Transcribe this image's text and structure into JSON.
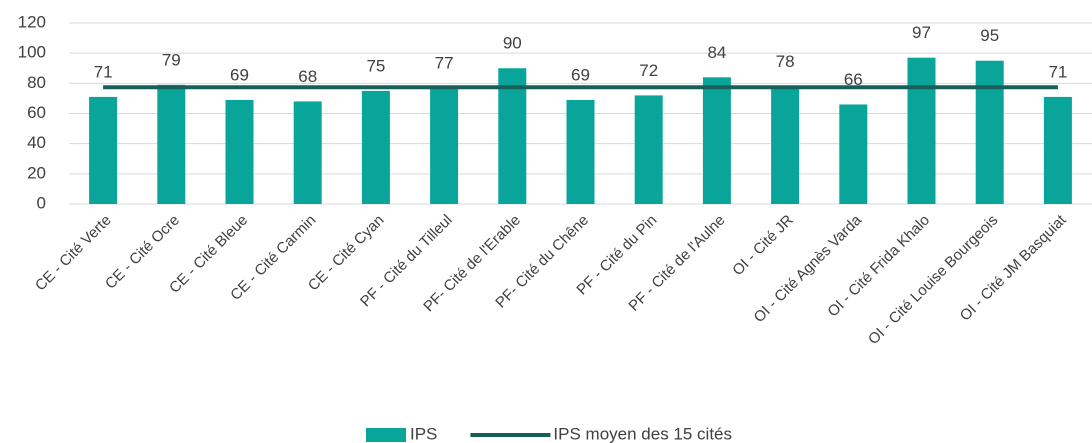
{
  "chart_data": {
    "type": "bar",
    "categories": [
      "CE - Cité Verte",
      "CE - Cité Ocre",
      "CE - Cité Bleue",
      "CE - Cité Carmin",
      "CE - Cité Cyan",
      "PF - Cité du Tilleul",
      "PF- Cité de l'Erable",
      "PF- Cité du Chêne",
      "PF - Cité du Pin",
      "PF - Cité de l'Aulne",
      "OI - Cité JR",
      "OI - Cité Agnès Varda",
      "OI - Cité Frida Khalo",
      "OI - Cité Louise Bourgeois",
      "OI - Cité JM Basquiat"
    ],
    "series": [
      {
        "name": "IPS",
        "type": "bar",
        "color": "#0aa59a",
        "values": [
          71,
          79,
          69,
          68,
          75,
          77,
          90,
          69,
          72,
          84,
          78,
          66,
          97,
          95,
          71
        ]
      },
      {
        "name": "IPS moyen des 15 cités",
        "type": "line",
        "color": "#17605a",
        "values": [
          77.4,
          77.4,
          77.4,
          77.4,
          77.4,
          77.4,
          77.4,
          77.4,
          77.4,
          77.4,
          77.4,
          77.4,
          77.4,
          77.4,
          77.4
        ]
      }
    ],
    "ylim": [
      0,
      120
    ],
    "yticks": [
      0,
      20,
      40,
      60,
      80,
      100,
      120
    ],
    "grid": true,
    "legend": "bottom"
  }
}
